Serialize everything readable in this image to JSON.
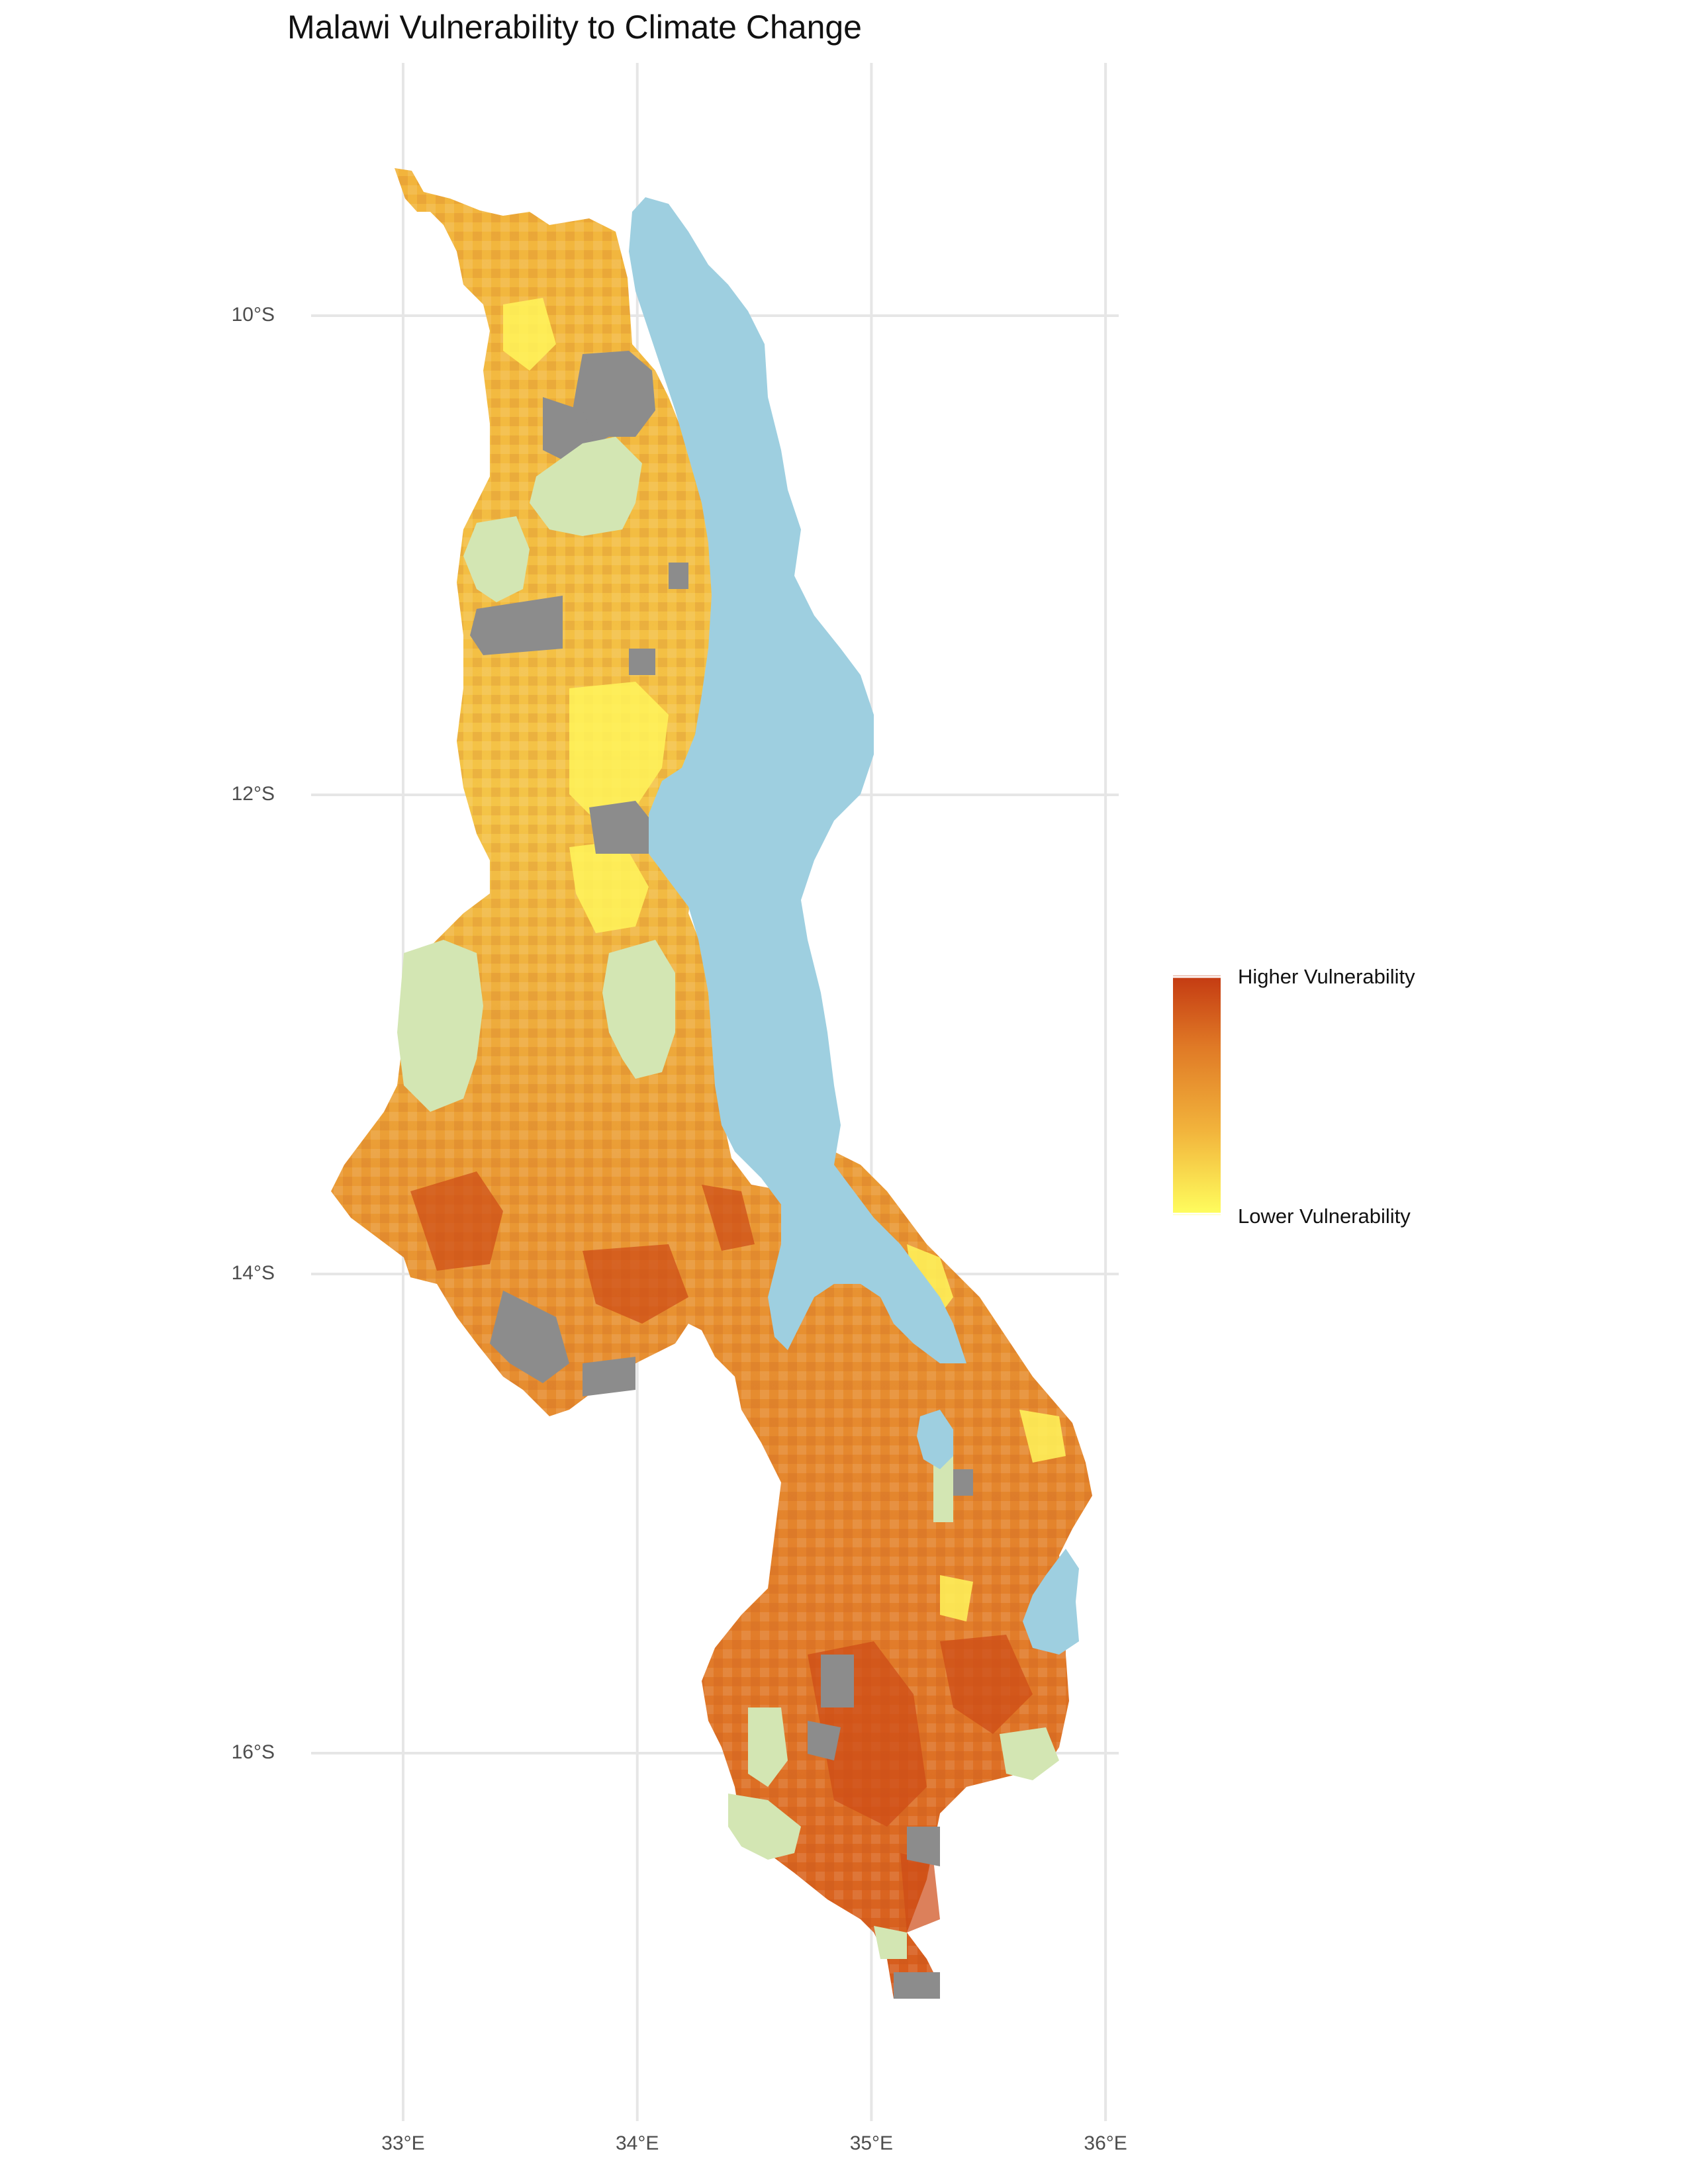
{
  "map": {
    "title": "Malawi Vulnerability to Climate Change",
    "y_ticks": [
      {
        "label": "10°S",
        "lat": -10
      },
      {
        "label": "12°S",
        "lat": -12
      },
      {
        "label": "14°S",
        "lat": -14
      },
      {
        "label": "16°S",
        "lat": -16
      }
    ],
    "x_ticks": [
      {
        "label": "33°E",
        "lon": 33
      },
      {
        "label": "34°E",
        "lon": 34
      },
      {
        "label": "35°E",
        "lon": 35
      },
      {
        "label": "36°E",
        "lon": 36
      }
    ],
    "colors": {
      "grid": "#e6e6e6",
      "lake": "#9ecfe0",
      "protected_area": "#d3e6b3",
      "no_data": "#8c8c8c",
      "high": "#c73612",
      "mid": "#ea8d2e",
      "low": "#ffff5e"
    }
  },
  "legend": {
    "high_label": "Higher Vulnerability",
    "low_label": "Lower Vulnerability",
    "colors": [
      "#c43a12",
      "#e07a26",
      "#f2b43c",
      "#ffff5e"
    ]
  }
}
